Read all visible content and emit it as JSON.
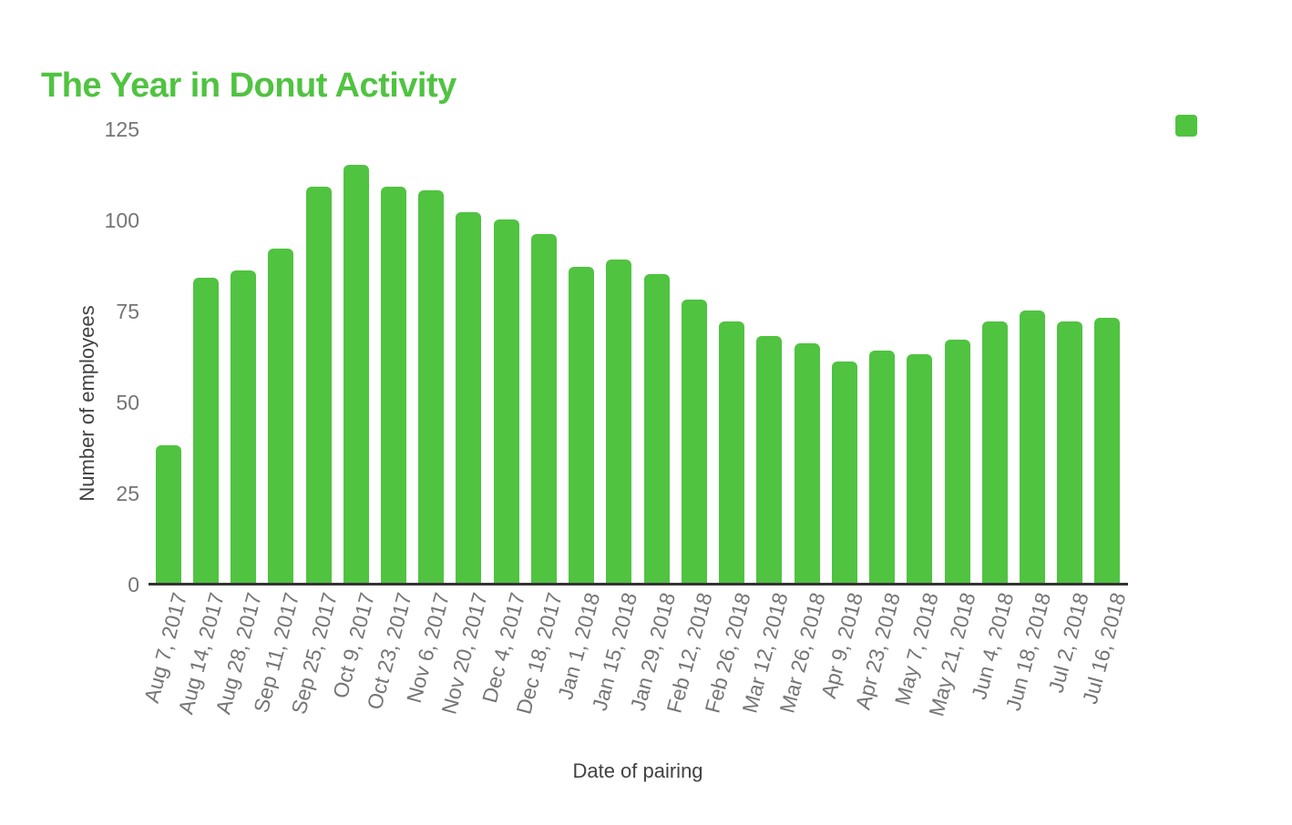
{
  "title": "The Year in Donut Activity",
  "colors": {
    "accent_green": "#50C341",
    "axis_line": "#333333",
    "tick_text": "#757575",
    "axis_title_text": "#424242"
  },
  "legend": {
    "swatch_icon": "green-square",
    "swatch_color": "#50C341"
  },
  "chart_data": {
    "type": "bar",
    "title": "The Year in Donut Activity",
    "xlabel": "Date of pairing",
    "ylabel": "Number of employees",
    "categories": [
      "Aug 7, 2017",
      "Aug 14, 2017",
      "Aug 28, 2017",
      "Sep 11, 2017",
      "Sep 25, 2017",
      "Oct 9, 2017",
      "Oct 23, 2017",
      "Nov 6, 2017",
      "Nov 20, 2017",
      "Dec 4, 2017",
      "Dec 18, 2017",
      "Jan 1, 2018",
      "Jan 15, 2018",
      "Jan 29, 2018",
      "Feb 12, 2018",
      "Feb 26, 2018",
      "Mar 12, 2018",
      "Mar 26, 2018",
      "Apr 9, 2018",
      "Apr 23, 2018",
      "May 7, 2018",
      "May 21, 2018",
      "Jun 4, 2018",
      "Jun 18, 2018",
      "Jul 2, 2018",
      "Jul 16, 2018"
    ],
    "values": [
      38,
      84,
      86,
      92,
      109,
      115,
      109,
      108,
      102,
      100,
      96,
      87,
      89,
      85,
      78,
      72,
      68,
      66,
      61,
      64,
      63,
      67,
      72,
      75,
      72,
      73
    ],
    "ylim": [
      0,
      125
    ],
    "yticks": [
      0,
      25,
      50,
      75,
      100,
      125
    ],
    "grid": false,
    "legend_position": "top-right",
    "series_color": "#50C341",
    "bar_label_rotation_deg": -75
  }
}
